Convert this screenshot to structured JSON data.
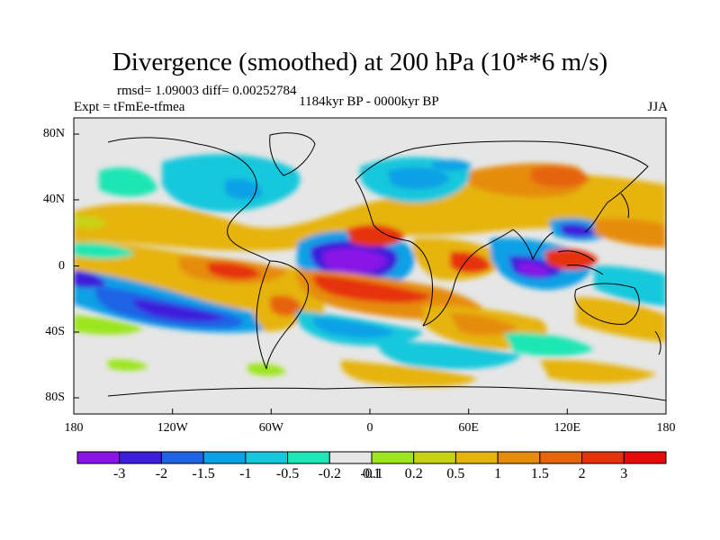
{
  "title": "Divergence (smoothed) at 200 hPa (10**6 m/s)",
  "stats": "rmsd= 1.09003 diff= 0.00252784",
  "experiment": "Expt = tFmEe-tfmea",
  "period": "1184kyr BP - 0000kyr BP",
  "season": "JJA",
  "lat_ticks": [
    "80N",
    "40N",
    "0",
    "40S",
    "80S"
  ],
  "lon_ticks": [
    "180",
    "120W",
    "60W",
    "0",
    "60E",
    "120E",
    "180"
  ],
  "colorbar": {
    "labels": [
      "-3",
      "-2",
      "-1.5",
      "-1",
      "-0.5",
      "-0.2",
      "-0.1",
      "0.1",
      "0.2",
      "0.5",
      "1",
      "1.5",
      "2",
      "3"
    ],
    "colors": [
      "#8a14e6",
      "#3c1edc",
      "#1e64e6",
      "#0aa0e6",
      "#16c8dc",
      "#1ee6b4",
      "#e6e6e6",
      "#9be61e",
      "#c8d214",
      "#e6b40a",
      "#e68c0a",
      "#e6640a",
      "#e6320a",
      "#e60a0a"
    ]
  },
  "colors": {
    "background": "#e6e6e6",
    "coast": "#000000"
  }
}
